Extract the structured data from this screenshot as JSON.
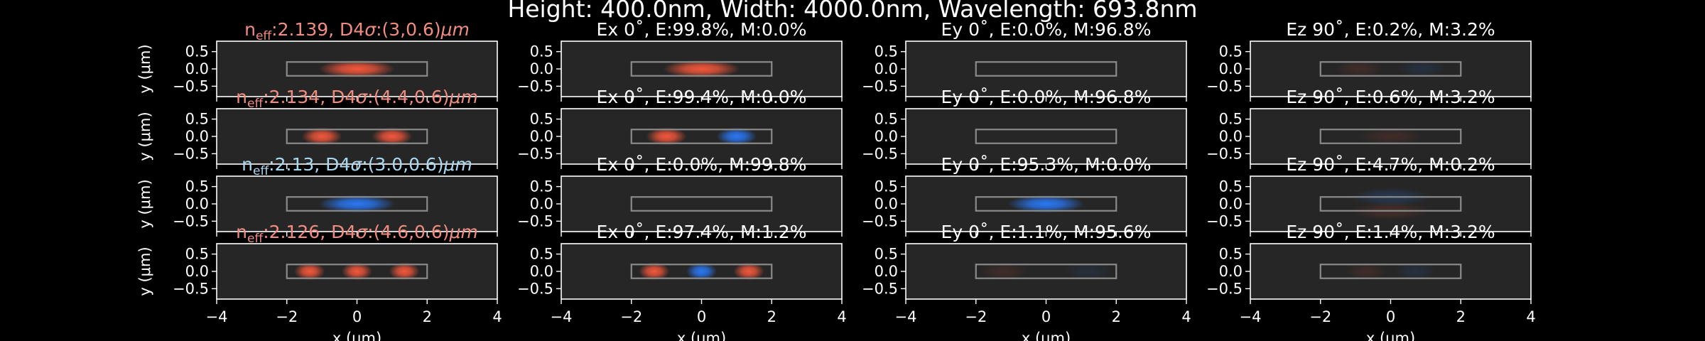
{
  "figure": {
    "suptitle": "Height: 400.0nm, Width: 4000.0nm, Wavelength: 693.8nm"
  },
  "colors": {
    "background": "#000000",
    "axes_face": "#262626",
    "text": "#ffffff",
    "title_red": "#f08c80",
    "title_blue": "#a8d8f0",
    "field_positive": "#ff5a3c",
    "field_negative": "#2a7cff",
    "waveguide_outline": "#8a8a8a"
  },
  "chart_data": {
    "type": "heatmap",
    "layout": {
      "rows": 4,
      "cols": 4
    },
    "column_components": [
      "Ex 0˚",
      "Ey 0˚",
      "Ez 90˚"
    ],
    "xlim": [
      -4,
      4
    ],
    "ylim": [
      -0.8,
      0.8
    ],
    "xticks": [
      "−4",
      "−2",
      "0",
      "2",
      "4"
    ],
    "yticks": [
      "0.5",
      "0.0",
      "−0.5"
    ],
    "ylabel": "y (μm)",
    "xlabel": "x (μm)",
    "waveguide": {
      "x": [
        -2,
        2
      ],
      "y": [
        -0.2,
        0.2
      ]
    },
    "modes": [
      {
        "neff": "2.139",
        "d4sigma": "(3,0.6)",
        "title_color": "red",
        "intensity_lobes": [
          {
            "x": 0,
            "sx": 0.95,
            "sign": 1
          }
        ],
        "ex": {
          "e": "99.8%",
          "m": "0.0%",
          "lobes": [
            {
              "x": 0,
              "sx": 0.95,
              "sign": 1
            }
          ]
        },
        "ey": {
          "e": "0.0%",
          "m": "96.8%",
          "lobes": []
        },
        "ez": {
          "e": "0.2%",
          "m": "3.2%",
          "lobes": [
            {
              "x": -0.9,
              "sx": 0.6,
              "sign": 1,
              "a": 0.12
            },
            {
              "x": 0.9,
              "sx": 0.6,
              "sign": -1,
              "a": 0.12
            }
          ]
        }
      },
      {
        "neff": "2.134",
        "d4sigma": "(4.4,0.6)",
        "title_color": "red",
        "intensity_lobes": [
          {
            "x": -1.0,
            "sx": 0.5,
            "sign": 1
          },
          {
            "x": 1.0,
            "sx": 0.5,
            "sign": 1
          }
        ],
        "ex": {
          "e": "99.4%",
          "m": "0.0%",
          "lobes": [
            {
              "x": -1.0,
              "sx": 0.5,
              "sign": 1
            },
            {
              "x": 1.0,
              "sx": 0.5,
              "sign": -1
            }
          ]
        },
        "ey": {
          "e": "0.0%",
          "m": "96.8%",
          "lobes": []
        },
        "ez": {
          "e": "0.6%",
          "m": "3.2%",
          "lobes": [
            {
              "x": 0,
              "sx": 0.8,
              "sign": 1,
              "a": 0.12
            }
          ]
        }
      },
      {
        "neff": "2.13",
        "d4sigma": "(3.0,0.6)",
        "title_color": "blue",
        "intensity_lobes": [
          {
            "x": 0,
            "sx": 0.95,
            "sign": -1
          }
        ],
        "ex": {
          "e": "0.0%",
          "m": "99.8%",
          "lobes": []
        },
        "ey": {
          "e": "95.3%",
          "m": "0.0%",
          "lobes": [
            {
              "x": 0,
              "sx": 0.95,
              "sign": -1
            }
          ]
        },
        "ez": {
          "e": "4.7%",
          "m": "0.2%",
          "lobes": [
            {
              "x": 0,
              "sx": 1.0,
              "sign": -1,
              "a": 0.22,
              "y": 0.2
            },
            {
              "x": 0,
              "sx": 1.0,
              "sign": 1,
              "a": 0.15,
              "y": -0.2
            }
          ]
        }
      },
      {
        "neff": "2.126",
        "d4sigma": "(4.6,0.6)",
        "title_color": "red",
        "intensity_lobes": [
          {
            "x": -1.35,
            "sx": 0.38,
            "sign": 1
          },
          {
            "x": 0,
            "sx": 0.38,
            "sign": 1
          },
          {
            "x": 1.35,
            "sx": 0.38,
            "sign": 1
          }
        ],
        "ex": {
          "e": "97.4%",
          "m": "1.2%",
          "lobes": [
            {
              "x": -1.35,
              "sx": 0.38,
              "sign": 1
            },
            {
              "x": 0,
              "sx": 0.38,
              "sign": -1
            },
            {
              "x": 1.35,
              "sx": 0.38,
              "sign": 1
            }
          ]
        },
        "ey": {
          "e": "1.1%",
          "m": "95.6%",
          "lobes": [
            {
              "x": -1.2,
              "sx": 0.6,
              "sign": 1,
              "a": 0.12
            },
            {
              "x": 1.2,
              "sx": 0.6,
              "sign": -1,
              "a": 0.1
            }
          ]
        },
        "ez": {
          "e": "1.4%",
          "m": "3.2%",
          "lobes": [
            {
              "x": -0.7,
              "sx": 0.5,
              "sign": 1,
              "a": 0.12
            },
            {
              "x": 0.7,
              "sx": 0.5,
              "sign": -1,
              "a": 0.12
            }
          ]
        }
      }
    ]
  }
}
